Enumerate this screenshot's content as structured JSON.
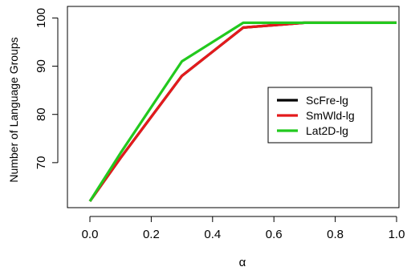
{
  "chart_data": {
    "type": "line",
    "title": "",
    "xlabel": "α",
    "ylabel": "Number of Language Groups",
    "xlim": [
      0.0,
      1.0
    ],
    "ylim": [
      61.5,
      100.4
    ],
    "x_ticks": [
      0.0,
      0.2,
      0.4,
      0.6,
      0.8,
      1.0
    ],
    "x_tick_labels": [
      "0.0",
      "0.2",
      "0.4",
      "0.6",
      "0.8",
      "1.0"
    ],
    "y_ticks": [
      70,
      80,
      90,
      100
    ],
    "y_tick_labels": [
      "70",
      "80",
      "90",
      "100"
    ],
    "grid": false,
    "legend_position": "center-right",
    "series": [
      {
        "name": "ScFre-lg",
        "color": "#000000",
        "x": [
          0.0,
          0.1,
          0.3,
          0.5,
          0.7,
          1.0
        ],
        "y": [
          62,
          71,
          88,
          98,
          99,
          99
        ]
      },
      {
        "name": "SmWld-lg",
        "color": "#e41a1c",
        "x": [
          0.0,
          0.1,
          0.3,
          0.5,
          0.7,
          1.0
        ],
        "y": [
          62,
          71,
          88,
          98,
          99,
          99
        ]
      },
      {
        "name": "Lat2D-lg",
        "color": "#22c91e",
        "x": [
          0.0,
          0.1,
          0.3,
          0.5,
          0.7,
          1.0
        ],
        "y": [
          62,
          72,
          91,
          99,
          99,
          99
        ]
      }
    ]
  }
}
